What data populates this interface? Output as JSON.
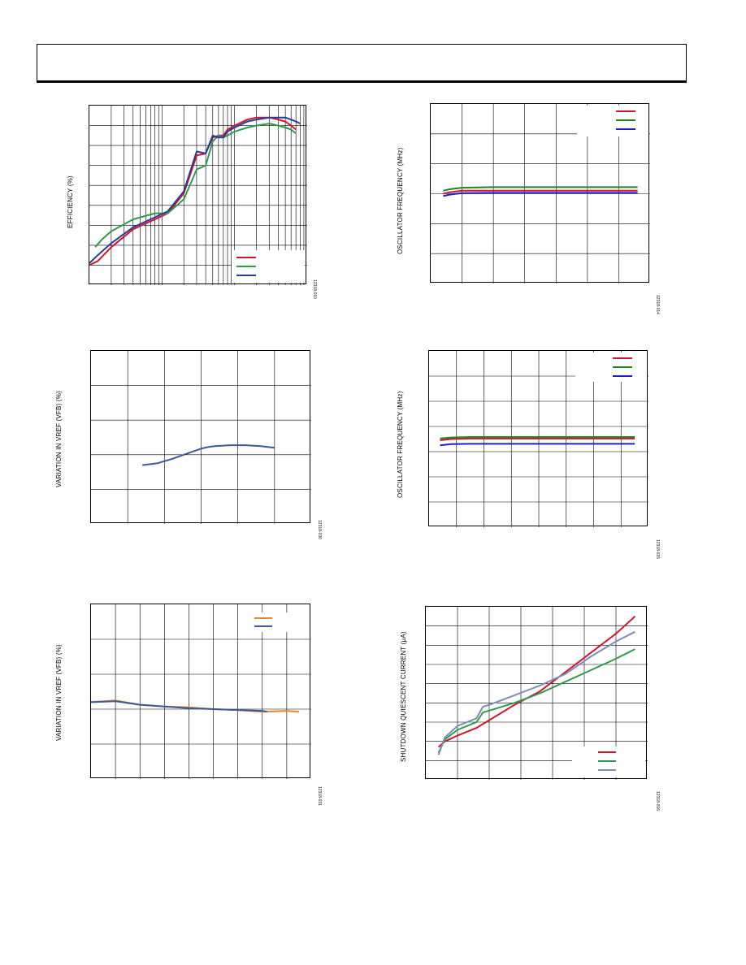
{
  "header": {
    "text": ""
  },
  "colors": {
    "red": "#d4142a",
    "green": "#2e9a4e",
    "blue": "#2a3a9c",
    "navy": "#3b5898",
    "orange": "#e8852e",
    "slate": "#7b8db8",
    "pure_green": "#1a8a1a",
    "pure_blue": "#1e1ecf"
  },
  "charts": [
    {
      "id": "efficiency",
      "ylabel": "EFFICIENCY (%)",
      "fig_id": "12318-010",
      "chart_data": {
        "type": "line",
        "xscale": "log",
        "xlim": [
          0.0001,
          0.1
        ],
        "ylim": [
          0,
          90
        ],
        "grid": true,
        "legend": "bottom-right",
        "series": [
          {
            "color": "red",
            "x": [
              0.0001,
              0.00013,
              0.0002,
              0.0004,
              0.0008,
              0.0012,
              0.002,
              0.003,
              0.004,
              0.005,
              0.006,
              0.007,
              0.008,
              0.01,
              0.015,
              0.02,
              0.03,
              0.04,
              0.05,
              0.06,
              0.07
            ],
            "y": [
              10,
              12,
              19,
              28,
              33,
              36,
              46,
              65,
              66,
              74,
              75,
              75,
              78,
              80,
              83,
              84,
              84,
              83,
              82,
              80,
              78
            ]
          },
          {
            "color": "green",
            "x": [
              0.00012,
              0.00015,
              0.0002,
              0.0004,
              0.0008,
              0.0012,
              0.002,
              0.003,
              0.004,
              0.005,
              0.006,
              0.007,
              0.008,
              0.01,
              0.015,
              0.02,
              0.03,
              0.04,
              0.05,
              0.06,
              0.07
            ],
            "y": [
              19,
              23,
              27,
              33,
              36,
              36,
              43,
              58,
              60,
              72,
              75,
              74,
              75,
              77,
              79,
              80,
              81,
              80,
              79,
              78,
              76
            ]
          },
          {
            "color": "blue",
            "x": [
              0.0001,
              0.00013,
              0.0002,
              0.0004,
              0.0008,
              0.0012,
              0.002,
              0.003,
              0.004,
              0.005,
              0.006,
              0.007,
              0.008,
              0.01,
              0.015,
              0.02,
              0.03,
              0.04,
              0.05,
              0.06,
              0.07,
              0.08
            ],
            "y": [
              11,
              15,
              21,
              29,
              34,
              37,
              47,
              67,
              66,
              75,
              74,
              74,
              77,
              79,
              82,
              83,
              84,
              84,
              84,
              83,
              82,
              81
            ]
          }
        ]
      }
    },
    {
      "id": "osc_freq_1",
      "ylabel": "OSCILLATOR FREQUENCY (MHz)",
      "fig_id": "12318-014",
      "chart_data": {
        "type": "line",
        "xlim": [
          0,
          7
        ],
        "ylim": [
          0,
          6
        ],
        "grid": true,
        "legend": "top-right",
        "series": [
          {
            "color": "red",
            "x": [
              0.4,
              0.6,
              1,
              2,
              3,
              4,
              5,
              6,
              6.6
            ],
            "y": [
              3.0,
              3.05,
              3.1,
              3.1,
              3.1,
              3.1,
              3.1,
              3.1,
              3.1
            ]
          },
          {
            "color": "pure_green",
            "x": [
              0.4,
              0.6,
              1,
              2,
              3,
              4,
              5,
              6,
              6.6
            ],
            "y": [
              3.1,
              3.15,
              3.2,
              3.22,
              3.22,
              3.22,
              3.22,
              3.22,
              3.22
            ]
          },
          {
            "color": "pure_blue",
            "x": [
              0.4,
              0.6,
              1,
              2,
              3,
              4,
              5,
              6,
              6.6
            ],
            "y": [
              2.92,
              2.97,
              3.02,
              3.03,
              3.03,
              3.03,
              3.03,
              3.03,
              3.03
            ]
          }
        ]
      }
    },
    {
      "id": "vref_var_temp",
      "ylabel": "VARIATION IN VREF (VFB) (%)",
      "fig_id": "12318-030",
      "chart_data": {
        "type": "line",
        "xlim": [
          0,
          6
        ],
        "ylim": [
          -1,
          1
        ],
        "grid": true,
        "series": [
          {
            "color": "navy",
            "x": [
              1.4,
              1.8,
              2.2,
              2.6,
              3.0,
              3.2,
              3.4,
              3.8,
              4.2,
              4.6,
              5.0
            ],
            "y": [
              -0.32,
              -0.3,
              -0.25,
              -0.19,
              -0.13,
              -0.11,
              -0.1,
              -0.09,
              -0.09,
              -0.1,
              -0.12
            ]
          }
        ]
      }
    },
    {
      "id": "osc_freq_2",
      "ylabel": "OSCILLATOR FREQUENCY (MHz)",
      "fig_id": "12318-015",
      "chart_data": {
        "type": "line",
        "xlim": [
          0,
          8
        ],
        "ylim": [
          0,
          7
        ],
        "grid": true,
        "legend": "top-right",
        "series": [
          {
            "color": "red",
            "x": [
              0.4,
              0.8,
              1.5,
              3,
              5,
              7.5
            ],
            "y": [
              3.45,
              3.5,
              3.52,
              3.52,
              3.52,
              3.52
            ]
          },
          {
            "color": "pure_green",
            "x": [
              0.4,
              0.8,
              1.5,
              3,
              5,
              7.5
            ],
            "y": [
              3.52,
              3.56,
              3.58,
              3.58,
              3.58,
              3.58
            ]
          },
          {
            "color": "pure_blue",
            "x": [
              0.4,
              0.8,
              1.5,
              3,
              5,
              7.5
            ],
            "y": [
              3.25,
              3.3,
              3.31,
              3.31,
              3.31,
              3.31
            ]
          }
        ]
      }
    },
    {
      "id": "vref_var_2",
      "ylabel": "VARIATION IN VREF (VFB) (%)",
      "fig_id": "12318-031",
      "chart_data": {
        "type": "line",
        "xlim": [
          0,
          9
        ],
        "ylim": [
          -1,
          1
        ],
        "grid": true,
        "legend": "top-right",
        "series": [
          {
            "color": "orange",
            "x": [
              0,
              1,
              2,
              3,
              4,
              5,
              6,
              7,
              8,
              8.5
            ],
            "y": [
              -0.12,
              -0.1,
              -0.15,
              -0.17,
              -0.18,
              -0.2,
              -0.21,
              -0.23,
              -0.22,
              -0.23
            ]
          },
          {
            "color": "navy",
            "x": [
              0,
              1,
              2,
              3,
              4,
              5,
              6,
              7,
              7.2
            ],
            "y": [
              -0.12,
              -0.11,
              -0.15,
              -0.17,
              -0.19,
              -0.2,
              -0.21,
              -0.22,
              -0.23
            ]
          }
        ]
      }
    },
    {
      "id": "shutdown_iq",
      "ylabel": "SHUTDOWN QUIESCENT CURRENT (µA)",
      "fig_id": "12318-016",
      "chart_data": {
        "type": "line",
        "xlim": [
          0,
          7
        ],
        "ylim": [
          0,
          9
        ],
        "grid": true,
        "legend": "bottom-right",
        "series": [
          {
            "color": "red",
            "x": [
              0.4,
              0.6,
              1.0,
              1.6,
              2.0,
              2.8,
              3.6,
              4.4,
              5.2,
              6.0,
              6.6
            ],
            "y": [
              1.7,
              2.0,
              2.3,
              2.7,
              3.1,
              3.9,
              4.6,
              5.6,
              6.6,
              7.6,
              8.5
            ]
          },
          {
            "color": "green",
            "x": [
              0.4,
              0.6,
              1.0,
              1.6,
              1.8,
              2.0,
              2.8,
              3.6,
              4.4,
              5.2,
              6.0,
              6.6
            ],
            "y": [
              1.4,
              2.1,
              2.6,
              3.0,
              3.5,
              3.6,
              4.0,
              4.5,
              5.1,
              5.7,
              6.3,
              6.8
            ]
          },
          {
            "color": "slate",
            "x": [
              0.4,
              0.6,
              1.0,
              1.6,
              1.8,
              2.0,
              2.8,
              3.6,
              4.4,
              5.2,
              6.0,
              6.6
            ],
            "y": [
              1.3,
              2.2,
              2.8,
              3.2,
              3.8,
              3.9,
              4.4,
              4.9,
              5.5,
              6.4,
              7.2,
              7.7
            ]
          }
        ]
      }
    }
  ]
}
